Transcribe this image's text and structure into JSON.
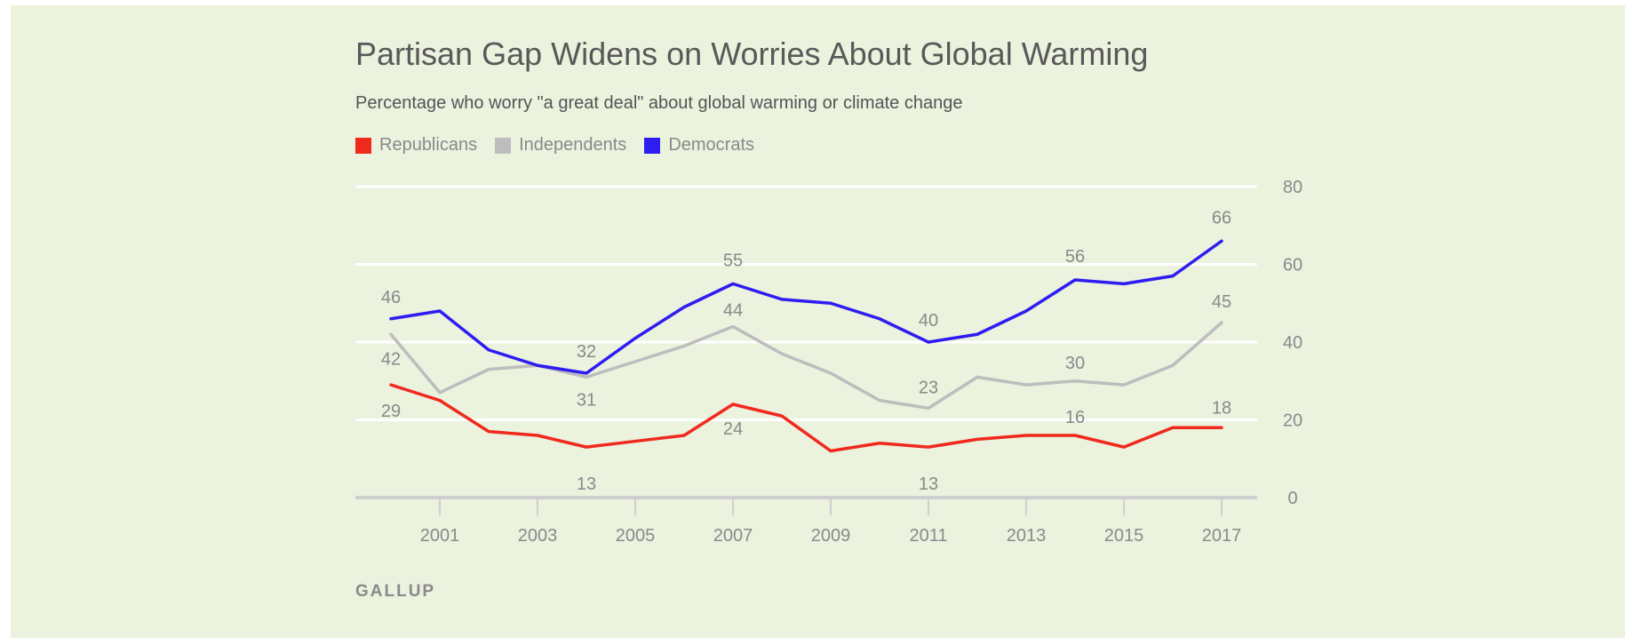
{
  "chart_data": {
    "type": "line",
    "title": "Partisan Gap Widens on Worries About Global Warming",
    "subtitle": "Percentage who worry \"a great deal\" about global warming or climate change",
    "xlabel": "",
    "ylabel": "",
    "x": [
      2000,
      2001,
      2002,
      2003,
      2004,
      2005,
      2006,
      2007,
      2008,
      2009,
      2010,
      2011,
      2012,
      2013,
      2014,
      2015,
      2016,
      2017
    ],
    "xticks": [
      "2001",
      "2003",
      "2005",
      "2007",
      "2009",
      "2011",
      "2013",
      "2015",
      "2017"
    ],
    "ylim": [
      0,
      80
    ],
    "yticks": [
      "0",
      "20",
      "40",
      "60",
      "80"
    ],
    "grid": true,
    "legend_position": "top-left",
    "series": [
      {
        "name": "Republicans",
        "color": "#f0291d",
        "values": [
          29,
          25,
          17,
          16,
          13,
          14.5,
          16,
          24,
          21,
          12,
          14,
          13,
          15,
          16,
          16,
          13,
          18,
          18
        ],
        "labels": [
          {
            "x": 2000,
            "text": "29"
          },
          {
            "x": 2004,
            "text": "13"
          },
          {
            "x": 2007,
            "text": "24"
          },
          {
            "x": 2011,
            "text": "13"
          },
          {
            "x": 2014,
            "text": "16"
          },
          {
            "x": 2017,
            "text": "18"
          }
        ]
      },
      {
        "name": "Independents",
        "color": "#bdbdbd",
        "values": [
          42,
          27,
          33,
          34,
          31,
          35,
          39,
          44,
          37,
          32,
          25,
          23,
          31,
          29,
          30,
          29,
          34,
          45
        ],
        "labels": [
          {
            "x": 2000,
            "text": "42"
          },
          {
            "x": 2004,
            "text": "31"
          },
          {
            "x": 2007,
            "text": "44"
          },
          {
            "x": 2011,
            "text": "23"
          },
          {
            "x": 2014,
            "text": "30"
          },
          {
            "x": 2017,
            "text": "45"
          }
        ]
      },
      {
        "name": "Democrats",
        "color": "#2e1df0",
        "values": [
          46,
          48,
          38,
          34,
          32,
          41,
          49,
          55,
          51,
          50,
          46,
          40,
          42,
          48,
          56,
          55,
          57,
          66
        ],
        "labels": [
          {
            "x": 2000,
            "text": "46"
          },
          {
            "x": 2004,
            "text": "32"
          },
          {
            "x": 2007,
            "text": "55"
          },
          {
            "x": 2011,
            "text": "40"
          },
          {
            "x": 2014,
            "text": "56"
          },
          {
            "x": 2017,
            "text": "66"
          }
        ]
      }
    ],
    "source": "GALLUP",
    "colors": {
      "background": "#ebf2de",
      "grid": "#ffffff",
      "text": "#8a8a8a"
    }
  }
}
